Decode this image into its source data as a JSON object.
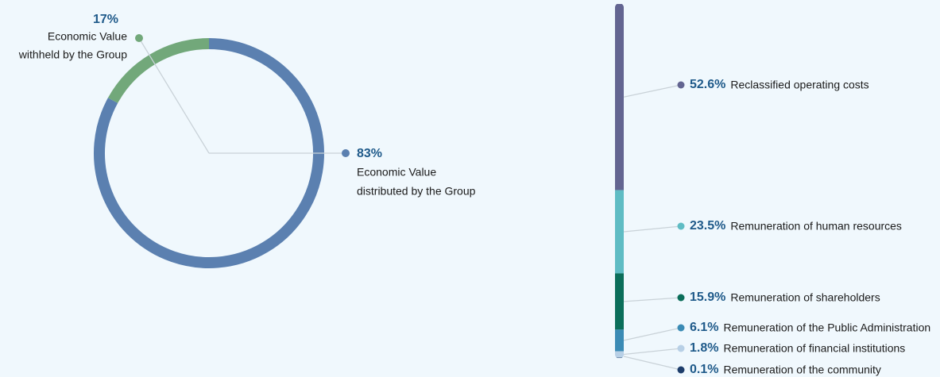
{
  "chart_data": [
    {
      "type": "donut",
      "categories": [
        [
          "Economic Value",
          "distributed by the Group"
        ],
        [
          "Economic Value",
          "withheld by the Group"
        ]
      ],
      "values": [
        83,
        17
      ],
      "value_labels": [
        "83%",
        "17%"
      ],
      "colors": [
        "#5b80b0",
        "#72a87a"
      ]
    },
    {
      "type": "stacked_bar",
      "ylim": [
        0,
        100
      ],
      "series": [
        {
          "name": "Reclassified operating costs",
          "color": "#636591",
          "values": [
            52.6
          ],
          "value_labels": [
            "52.6%"
          ]
        },
        {
          "name": "Remuneration of human resources",
          "color": "#5fbcc4",
          "values": [
            23.5
          ],
          "value_labels": [
            "23.5%"
          ]
        },
        {
          "name": "Remuneration of shareholders",
          "color": "#0b6e5a",
          "values": [
            15.9
          ],
          "value_labels": [
            "15.9%"
          ]
        },
        {
          "name": "Remuneration of the Public Administration",
          "color": "#3b8bb5",
          "values": [
            6.1
          ],
          "value_labels": [
            "6.1%"
          ]
        },
        {
          "name": "Remuneration of financial institutions",
          "color": "#b8d0e6",
          "values": [
            1.8
          ],
          "value_labels": [
            "1.8%"
          ]
        },
        {
          "name": "Remuneration of the community",
          "color": "#1d3d6b",
          "values": [
            0.1
          ],
          "value_labels": [
            "0.1%"
          ]
        }
      ]
    }
  ]
}
